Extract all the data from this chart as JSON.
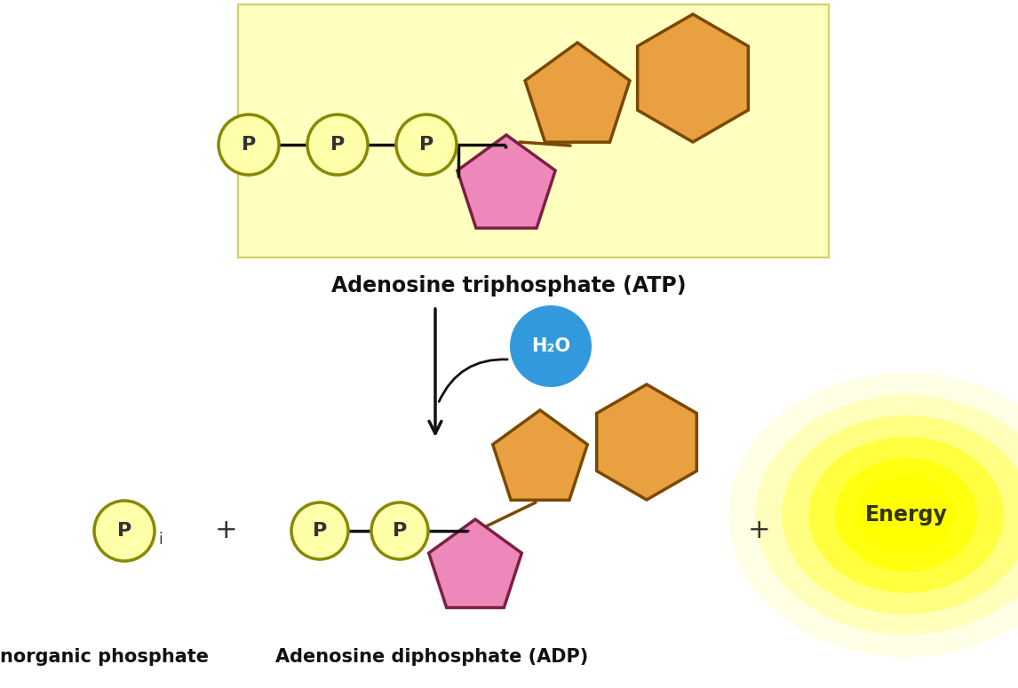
{
  "bg_color": "#ffffff",
  "atp_box_color": "#ffffc0",
  "atp_box_edgecolor": "#d0d060",
  "pentagon_color": "#ee88bb",
  "pentagon_edgecolor": "#7a2040",
  "base_color": "#e8a040",
  "base_edgecolor": "#7a4800",
  "circle_p_fill": "#ffffaa",
  "circle_p_edge": "#888800",
  "h2o_fill": "#3399dd",
  "h2o_text": "#ffffff",
  "arrow_color": "#111111",
  "energy_color": "#ffff00",
  "text_color": "#111111",
  "text_atp": "Adenosine triphosphate (ATP)",
  "text_adp": "Adenosine diphosphate (ADP)",
  "text_pi_label": "norganic phosphate",
  "text_energy": "Energy",
  "text_h2o": "H₂O",
  "plus_color": "#333333"
}
